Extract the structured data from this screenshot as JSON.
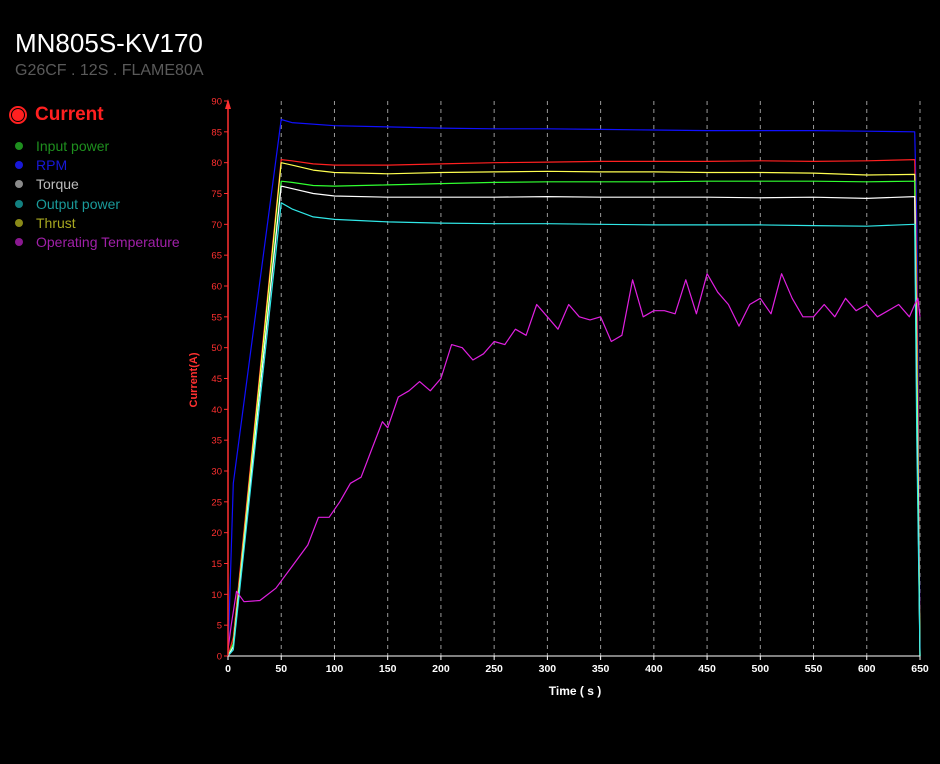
{
  "header": {
    "title": "MN805S-KV170",
    "subtitle": "G26CF . 12S . FLAME80A"
  },
  "legend": {
    "active": {
      "label": "Current",
      "color": "#ff2020"
    },
    "items": [
      {
        "label": "Input power",
        "color": "#1e8f1e",
        "text_color": "#1e8f1e"
      },
      {
        "label": "RPM",
        "color": "#1818d8",
        "text_color": "#1818d8"
      },
      {
        "label": "Torque",
        "color": "#8a8a8a",
        "text_color": "#bdbdbd"
      },
      {
        "label": "Output power",
        "color": "#128080",
        "text_color": "#1a9a9a"
      },
      {
        "label": "Thrust",
        "color": "#8a8a18",
        "text_color": "#a8a820"
      },
      {
        "label": "Operating Temperature",
        "color": "#8a1890",
        "text_color": "#a020a8"
      }
    ]
  },
  "chart_data": {
    "type": "line",
    "xlabel": "Time ( s )",
    "ylabel": "Current(A)",
    "xlim": [
      0,
      650
    ],
    "ylim": [
      0,
      90
    ],
    "x_ticks": [
      0,
      50,
      100,
      150,
      200,
      250,
      300,
      350,
      400,
      450,
      500,
      550,
      600,
      650
    ],
    "y_ticks": [
      0,
      5,
      10,
      15,
      20,
      25,
      30,
      35,
      40,
      45,
      50,
      55,
      60,
      65,
      70,
      75,
      80,
      85,
      90
    ],
    "grid": {
      "vertical": true,
      "horizontal": false
    },
    "axis_color": "#ff3030",
    "series": [
      {
        "name": "RPM",
        "color": "#1010ff",
        "x": [
          0,
          5,
          50,
          60,
          100,
          150,
          200,
          250,
          300,
          350,
          400,
          450,
          500,
          550,
          600,
          645,
          647,
          650
        ],
        "y": [
          0,
          28,
          87,
          86.5,
          86,
          85.8,
          85.6,
          85.5,
          85.5,
          85.4,
          85.3,
          85.2,
          85.2,
          85.2,
          85.1,
          85,
          70,
          1
        ]
      },
      {
        "name": "Current",
        "color": "#ff2020",
        "x": [
          0,
          5,
          50,
          60,
          80,
          100,
          150,
          200,
          250,
          300,
          350,
          400,
          450,
          500,
          550,
          600,
          645,
          647,
          650
        ],
        "y": [
          0,
          3,
          80.5,
          80.3,
          79.8,
          79.6,
          79.6,
          79.8,
          80,
          80.1,
          80.2,
          80.2,
          80.2,
          80.3,
          80.2,
          80.3,
          80.5,
          60,
          0
        ]
      },
      {
        "name": "Thrust",
        "color": "#ffff50",
        "x": [
          0,
          5,
          50,
          60,
          80,
          100,
          150,
          200,
          250,
          300,
          350,
          400,
          450,
          500,
          550,
          600,
          645,
          647,
          650
        ],
        "y": [
          0,
          2,
          80,
          79.6,
          78.8,
          78.4,
          78.2,
          78.4,
          78.5,
          78.6,
          78.5,
          78.5,
          78.4,
          78.4,
          78.3,
          78,
          78.1,
          50,
          0
        ]
      },
      {
        "name": "Input power",
        "color": "#30ff30",
        "x": [
          0,
          5,
          50,
          60,
          80,
          100,
          150,
          200,
          250,
          300,
          350,
          400,
          450,
          500,
          550,
          600,
          645,
          647,
          650
        ],
        "y": [
          0,
          2,
          77,
          76.8,
          76.3,
          76.2,
          76.4,
          76.6,
          76.8,
          76.9,
          76.9,
          76.9,
          77,
          77,
          77,
          76.9,
          77,
          45,
          0
        ]
      },
      {
        "name": "Torque",
        "color": "#ffffff",
        "x": [
          0,
          5,
          50,
          60,
          80,
          100,
          150,
          200,
          250,
          300,
          350,
          400,
          450,
          500,
          550,
          600,
          645,
          647,
          650
        ],
        "y": [
          0,
          1.5,
          76.2,
          75.8,
          75,
          74.6,
          74.4,
          74.4,
          74.4,
          74.5,
          74.4,
          74.4,
          74.4,
          74.3,
          74.4,
          74.2,
          74.5,
          40,
          0
        ]
      },
      {
        "name": "Output power",
        "color": "#30e8e8",
        "x": [
          0,
          5,
          50,
          60,
          80,
          100,
          150,
          200,
          250,
          300,
          350,
          400,
          450,
          500,
          550,
          600,
          645,
          647,
          650
        ],
        "y": [
          0,
          1,
          73.5,
          72.5,
          71.2,
          70.8,
          70.4,
          70.2,
          70.1,
          70.1,
          70,
          69.9,
          69.9,
          69.9,
          69.8,
          69.7,
          70,
          35,
          0
        ]
      },
      {
        "name": "Operating Temperature",
        "color": "#e020e0",
        "x": [
          0,
          3,
          8,
          15,
          30,
          45,
          60,
          75,
          85,
          95,
          105,
          115,
          125,
          135,
          145,
          150,
          160,
          170,
          180,
          190,
          200,
          210,
          220,
          230,
          240,
          250,
          260,
          270,
          280,
          290,
          300,
          310,
          320,
          330,
          340,
          350,
          360,
          370,
          380,
          390,
          400,
          410,
          420,
          430,
          440,
          450,
          460,
          470,
          480,
          490,
          500,
          510,
          520,
          530,
          540,
          550,
          560,
          570,
          580,
          590,
          600,
          610,
          620,
          630,
          640,
          645,
          648,
          650
        ],
        "y": [
          1,
          5,
          10.5,
          8.8,
          9,
          11,
          14.5,
          18,
          22.5,
          22.5,
          25,
          28,
          29,
          33.5,
          38,
          37,
          42,
          43,
          44.5,
          43,
          45,
          50.5,
          50,
          48,
          49,
          51,
          50.5,
          53,
          52,
          57,
          55,
          53,
          57,
          55,
          54.5,
          55,
          51,
          52,
          61,
          55,
          56,
          56,
          55.5,
          61,
          55.5,
          62,
          59,
          57,
          53.5,
          57,
          58,
          55.5,
          62,
          58,
          55,
          55,
          57,
          55,
          58,
          56,
          57,
          55,
          56,
          57,
          55,
          57,
          58,
          55
        ]
      }
    ]
  }
}
